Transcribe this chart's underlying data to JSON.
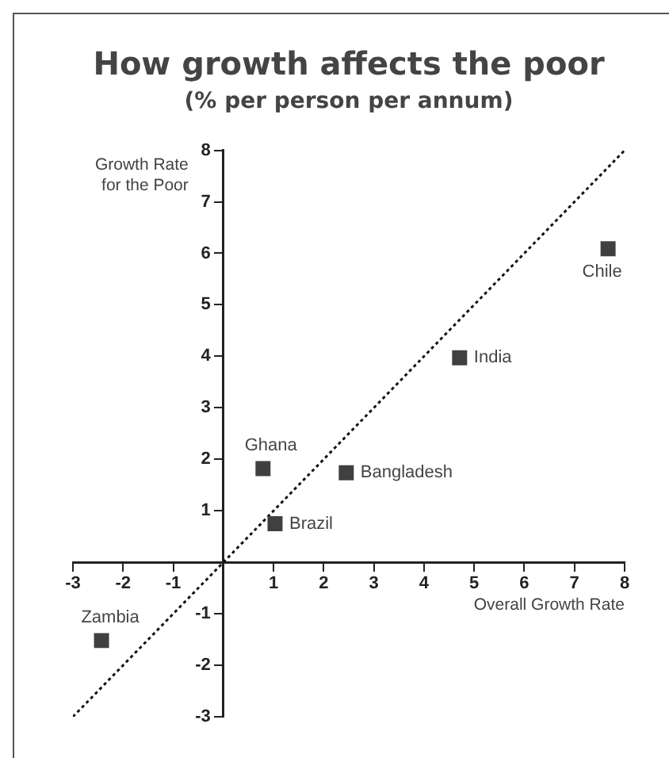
{
  "chart_data": {
    "type": "scatter",
    "title": "How growth affects the poor",
    "subtitle": "(% per person per annum)",
    "xlabel": "Overall Growth Rate",
    "ylabel": "Growth Rate for the Poor",
    "series": [
      {
        "color": "#404040",
        "marker": "square",
        "x": [
          -2.43,
          0.79,
          1.03,
          2.45,
          4.71,
          7.67
        ],
        "values": [
          -1.52,
          1.82,
          0.75,
          1.74,
          3.97,
          6.09
        ]
      },
      {
        "type": "line",
        "color": "#111111",
        "line_style": "dotted",
        "marker": "none",
        "x": [
          -3,
          8
        ],
        "values": [
          -3,
          8
        ]
      }
    ],
    "annotations": [
      {
        "text": "Zambia",
        "x": -2.43,
        "y": -1.52
      },
      {
        "text": "Ghana",
        "x": 0.79,
        "y": 1.82
      },
      {
        "text": "Brazil",
        "x": 1.03,
        "y": 0.75
      },
      {
        "text": "Bangladesh",
        "x": 2.45,
        "y": 1.74
      },
      {
        "text": "India",
        "x": 4.71,
        "y": 3.97
      },
      {
        "text": "Chile",
        "x": 7.67,
        "y": 6.09
      }
    ],
    "xlim": [
      -3,
      8
    ],
    "ylim": [
      -3,
      8
    ],
    "xticks": [
      -3,
      -2,
      -1,
      1,
      2,
      3,
      4,
      5,
      6,
      7,
      8
    ],
    "yticks": [
      -3,
      -2,
      -1,
      1,
      2,
      3,
      4,
      5,
      6,
      7,
      8
    ],
    "grid": false,
    "legend": false
  }
}
